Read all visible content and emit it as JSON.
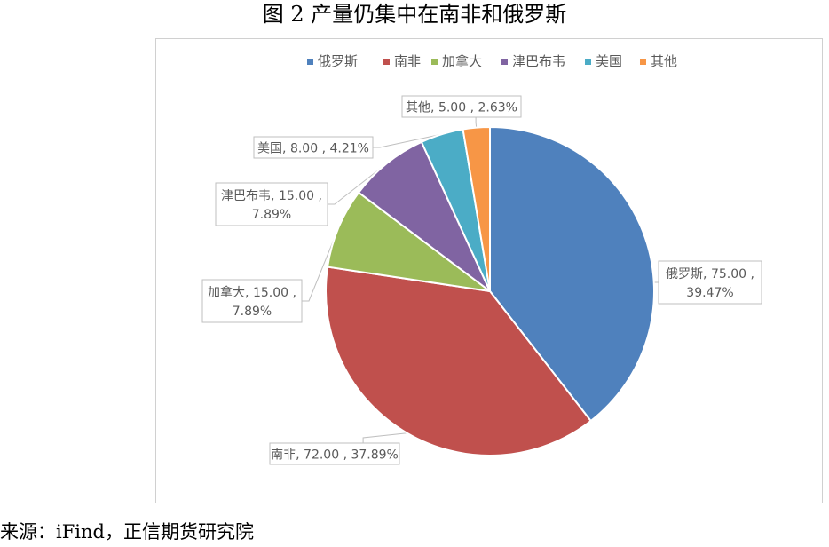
{
  "header": {
    "title": "图 2 产量仍集中在南非和俄罗斯"
  },
  "footer": {
    "source": "来源：iFind，正信期货研究院"
  },
  "chart_data": {
    "type": "pie",
    "title": "",
    "legend_position": "top",
    "series": [
      {
        "name": "俄罗斯",
        "value": 75.0,
        "percent": "39.47%",
        "color": "#4f81bd",
        "label_lines": [
          "俄罗斯, 75.00 ,",
          "39.47%"
        ]
      },
      {
        "name": "南非",
        "value": 72.0,
        "percent": "37.89%",
        "color": "#c0504d",
        "label_lines": [
          "南非, 72.00 , 37.89%"
        ]
      },
      {
        "name": "加拿大",
        "value": 15.0,
        "percent": "7.89%",
        "color": "#9bbb59",
        "label_lines": [
          "加拿大, 15.00 ,",
          "7.89%"
        ]
      },
      {
        "name": "津巴布韦",
        "value": 15.0,
        "percent": "7.89%",
        "color": "#8064a2",
        "label_lines": [
          "津巴布韦, 15.00 ,",
          "7.89%"
        ]
      },
      {
        "name": "美国",
        "value": 8.0,
        "percent": "4.21%",
        "color": "#4bacc6",
        "label_lines": [
          "美国, 8.00 , 4.21%"
        ]
      },
      {
        "name": "其他",
        "value": 5.0,
        "percent": "2.63%",
        "color": "#f79646",
        "label_lines": [
          "其他, 5.00 , 2.63%"
        ]
      }
    ]
  }
}
